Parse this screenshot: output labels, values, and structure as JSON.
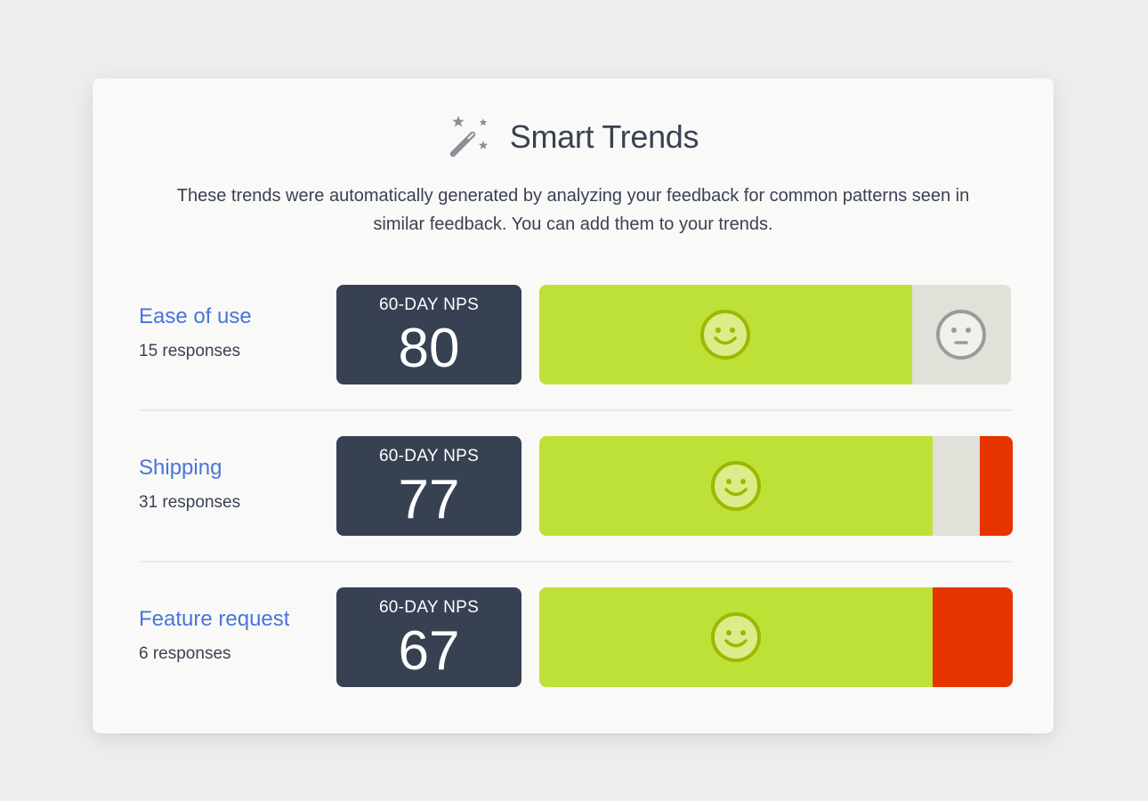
{
  "header": {
    "title": "Smart Trends",
    "icon": "magic-wand-icon",
    "description": "These trends were automatically generated by analyzing your feedback for common patterns seen in similar feedback. You can add them to your trends."
  },
  "colors": {
    "promoter": "#bde136",
    "passive": "#e1e0d9",
    "detractor": "#e53400",
    "link": "#4a74dd",
    "nps_box": "#374152"
  },
  "trends": [
    {
      "name": "Ease of use",
      "responses": "15 responses",
      "nps_label": "60-DAY NPS",
      "nps": "80",
      "segments": {
        "promoter": 0.79,
        "passive": 0.21,
        "detractor": 0
      }
    },
    {
      "name": "Shipping",
      "responses": "31 responses",
      "nps_label": "60-DAY NPS",
      "nps": "77",
      "segments": {
        "promoter": 0.83,
        "passive": 0.1,
        "detractor": 0.07
      }
    },
    {
      "name": "Feature request",
      "responses": "6 responses",
      "nps_label": "60-DAY NPS",
      "nps": "67",
      "segments": {
        "promoter": 0.83,
        "passive": 0,
        "detractor": 0.17
      }
    }
  ]
}
